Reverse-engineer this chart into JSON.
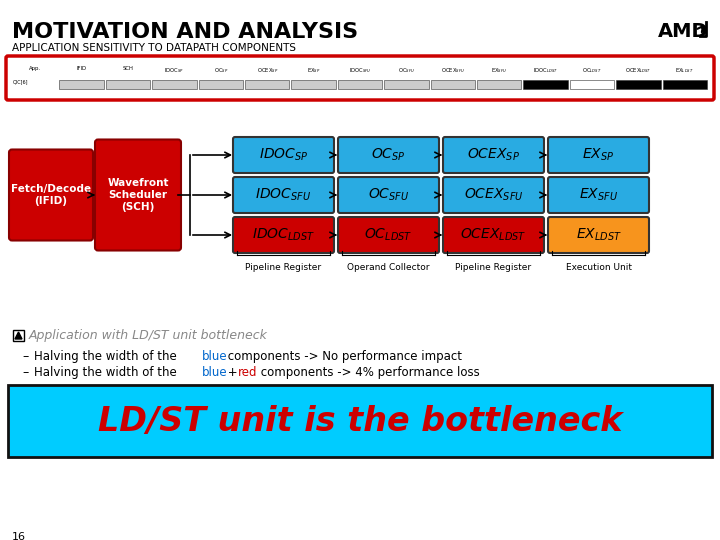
{
  "title": "MOTIVATION AND ANALYSIS",
  "subtitle": "APPLICATION SENSITIVITY TO DATAPATH COMPONENTS",
  "bg_color": "#ffffff",
  "blue_color": "#29ABE2",
  "red_color": "#CC0000",
  "yellow_color": "#F7941D",
  "fetch_decode_label": "Fetch/Decode\n(IFID)",
  "wavefront_label": "Wavefront\nScheduler\n(SCH)",
  "rows": [
    {
      "cells": [
        "IDOC",
        "OC",
        "OCEX",
        "EX"
      ],
      "subs": [
        "SP",
        "SP",
        "SP",
        "SP"
      ],
      "colors": [
        "#29ABE2",
        "#29ABE2",
        "#29ABE2",
        "#29ABE2"
      ]
    },
    {
      "cells": [
        "IDOC",
        "OC",
        "OCEX",
        "EX"
      ],
      "subs": [
        "SFU",
        "SFU",
        "SFU",
        "SFU"
      ],
      "colors": [
        "#29ABE2",
        "#29ABE2",
        "#29ABE2",
        "#29ABE2"
      ]
    },
    {
      "cells": [
        "IDOC",
        "OC",
        "OCEX",
        "EX"
      ],
      "subs": [
        "LDST",
        "LDST",
        "LDST",
        "LDST"
      ],
      "colors": [
        "#CC0000",
        "#CC0000",
        "#CC0000",
        "#F7941D"
      ]
    }
  ],
  "col_labels": [
    "Pipeline Register",
    "Operand Collector",
    "Pipeline Register",
    "Execution Unit"
  ],
  "bullet_title": "Application with LD/ST unit bottleneck",
  "banner_text": "LD/ST unit is the bottleneck",
  "banner_bg": "#00CCFF",
  "banner_text_color": "#CC0000",
  "page_num": "16",
  "header_labels": [
    "App.",
    "IFID",
    "SCH",
    "IDOC SP",
    "OC SP",
    "OCEX SP",
    "EX SP",
    "IDOC SFU",
    "OC SFU",
    "OCEX SFU",
    "EX SFU",
    "IDOC LDST",
    "OC LDST",
    "OCEX LDST",
    "EX LDST"
  ],
  "bar_colors": [
    "#cccccc",
    "#cccccc",
    "#cccccc",
    "#cccccc",
    "#cccccc",
    "#cccccc",
    "#cccccc",
    "#cccccc",
    "#cccccc",
    "#cccccc",
    "#000000",
    "#ffffff",
    "#000000",
    "#ffffff",
    "#000000"
  ]
}
